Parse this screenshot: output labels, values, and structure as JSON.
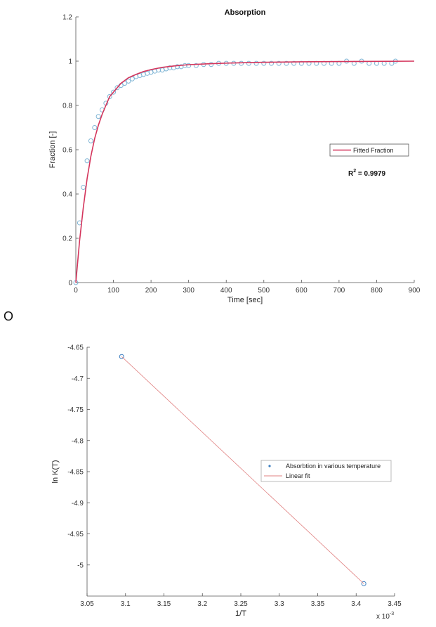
{
  "separator_text": "O",
  "chart_data": [
    {
      "type": "scatter",
      "title": "Absorption",
      "xlabel": "Time [sec]",
      "ylabel": "Fraction [-]",
      "xlim": [
        0,
        900
      ],
      "ylim": [
        0,
        1.2
      ],
      "xticks": [
        0,
        100,
        200,
        300,
        400,
        500,
        600,
        700,
        800,
        900
      ],
      "yticks": [
        0,
        0.2,
        0.4,
        0.6,
        0.8,
        1,
        1.2
      ],
      "grid": false,
      "legend_position": "right",
      "annotation": {
        "prefix": "R",
        "sup": "2",
        "suffix": " = 0.9979"
      },
      "series": [
        {
          "kind": "markers",
          "color": "#7fb5d5",
          "x": [
            0,
            10,
            20,
            30,
            40,
            50,
            60,
            70,
            80,
            90,
            100,
            110,
            120,
            130,
            140,
            150,
            160,
            170,
            180,
            190,
            200,
            210,
            220,
            230,
            240,
            250,
            260,
            270,
            280,
            290,
            300,
            320,
            340,
            360,
            380,
            400,
            420,
            440,
            460,
            480,
            500,
            520,
            540,
            560,
            580,
            600,
            620,
            640,
            660,
            680,
            700,
            720,
            740,
            760,
            780,
            800,
            820,
            840,
            850
          ],
          "y": [
            0,
            0.27,
            0.43,
            0.55,
            0.64,
            0.7,
            0.75,
            0.78,
            0.81,
            0.84,
            0.86,
            0.88,
            0.89,
            0.9,
            0.91,
            0.92,
            0.93,
            0.935,
            0.94,
            0.945,
            0.95,
            0.955,
            0.96,
            0.96,
            0.965,
            0.97,
            0.97,
            0.975,
            0.975,
            0.98,
            0.98,
            0.98,
            0.985,
            0.985,
            0.99,
            0.99,
            0.99,
            0.99,
            0.99,
            0.99,
            0.99,
            0.99,
            0.99,
            0.99,
            0.99,
            0.99,
            0.99,
            0.99,
            0.99,
            0.99,
            0.99,
            1.0,
            0.99,
            1.0,
            0.99,
            0.99,
            0.99,
            0.99,
            1.0
          ]
        },
        {
          "name": "Fitted Fraction",
          "kind": "line",
          "color": "#d4355c",
          "x": [
            0,
            10,
            20,
            30,
            40,
            50,
            60,
            70,
            80,
            90,
            100,
            120,
            140,
            160,
            180,
            200,
            230,
            260,
            300,
            350,
            400,
            450,
            500,
            600,
            700,
            800,
            900
          ],
          "y": [
            0,
            0.19,
            0.34,
            0.47,
            0.57,
            0.65,
            0.71,
            0.76,
            0.8,
            0.84,
            0.86,
            0.9,
            0.925,
            0.94,
            0.953,
            0.962,
            0.972,
            0.978,
            0.984,
            0.988,
            0.991,
            0.993,
            0.995,
            0.997,
            0.998,
            0.999,
            1.0
          ]
        }
      ]
    },
    {
      "type": "scatter",
      "title": "",
      "xlabel": "1/T",
      "ylabel": "ln K(T)",
      "x_multiplier": {
        "base": "x 10",
        "exp": "-3"
      },
      "xlim": [
        3.05,
        3.45
      ],
      "ylim": [
        -5.05,
        -4.65
      ],
      "xticks": [
        3.05,
        3.1,
        3.15,
        3.2,
        3.25,
        3.3,
        3.35,
        3.4,
        3.45
      ],
      "yticks": [
        -4.65,
        -4.7,
        -4.75,
        -4.8,
        -4.85,
        -4.9,
        -4.95,
        -5
      ],
      "grid": false,
      "legend_position": "right",
      "series": [
        {
          "name": "Absorbtion in various temperature",
          "kind": "markers",
          "color": "#3e7fc1",
          "x": [
            3.095,
            3.41
          ],
          "y": [
            -4.665,
            -5.03
          ]
        },
        {
          "name": "Linear fit",
          "kind": "line",
          "color": "#e08080",
          "x": [
            3.095,
            3.41
          ],
          "y": [
            -4.665,
            -5.03
          ]
        }
      ]
    }
  ]
}
